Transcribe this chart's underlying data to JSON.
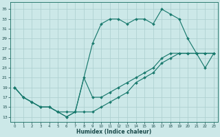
{
  "xlabel": "Humidex (Indice chaleur)",
  "bg_color": "#cce8e8",
  "grid_color": "#aacece",
  "line_color": "#1a7a6e",
  "xlim": [
    -0.5,
    23.5
  ],
  "ylim": [
    12.0,
    36.5
  ],
  "xticks": [
    0,
    1,
    2,
    3,
    4,
    5,
    6,
    7,
    8,
    9,
    10,
    11,
    12,
    13,
    14,
    15,
    16,
    17,
    18,
    19,
    20,
    21,
    22,
    23
  ],
  "yticks": [
    13,
    15,
    17,
    19,
    21,
    23,
    25,
    27,
    29,
    31,
    33,
    35
  ],
  "line1_x": [
    0,
    1,
    2,
    3,
    4,
    5,
    6,
    7,
    9,
    10,
    11,
    12,
    13,
    14,
    15,
    16,
    17,
    18,
    19,
    20,
    21,
    22,
    23
  ],
  "line1_y": [
    19,
    17,
    16,
    15,
    15,
    14,
    13,
    14,
    28,
    32,
    33,
    33,
    32,
    33,
    33,
    32,
    35,
    34,
    33,
    29,
    26,
    23,
    26
  ],
  "line2_x": [
    0,
    1,
    2,
    3,
    4,
    5,
    6,
    7,
    8,
    9,
    10,
    11,
    12,
    13,
    14,
    15,
    16,
    17,
    18,
    19,
    20,
    21,
    22,
    23
  ],
  "line2_y": [
    19,
    17,
    16,
    15,
    15,
    14,
    14,
    14,
    21,
    17,
    17,
    18,
    19,
    20,
    21,
    22,
    23,
    25,
    26,
    26,
    26,
    26,
    26,
    26
  ],
  "line3_x": [
    0,
    1,
    2,
    3,
    4,
    5,
    6,
    7,
    8,
    9,
    10,
    11,
    12,
    13,
    14,
    15,
    16,
    17,
    18,
    19,
    20,
    21,
    22,
    23
  ],
  "line3_y": [
    19,
    17,
    16,
    15,
    15,
    14,
    13,
    14,
    14,
    14,
    15,
    16,
    17,
    18,
    20,
    21,
    22,
    24,
    25,
    26,
    26,
    26,
    26,
    26
  ]
}
